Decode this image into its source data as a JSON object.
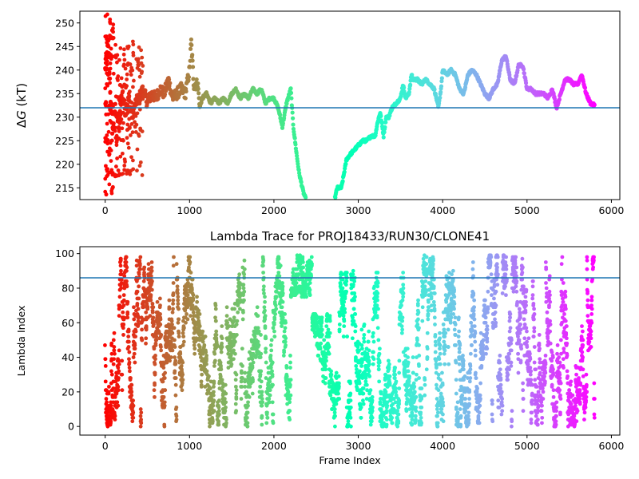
{
  "figure_title": "Lambda Trace for PROJ18433/RUN30/CLONE41",
  "colors": {
    "hline": "#1f77b4",
    "colormap": "rainbow"
  },
  "chart_data": [
    {
      "type": "scatter",
      "title": "",
      "xlabel": "",
      "ylabel_prefix": "Δ",
      "ylabel_var": "G",
      "ylabel_suffix": " (kT)",
      "xlim": [
        -300,
        6100
      ],
      "ylim": [
        212.5,
        252.5
      ],
      "xticks": [
        0,
        1000,
        2000,
        3000,
        4000,
        5000,
        6000
      ],
      "yticks": [
        215,
        220,
        225,
        230,
        235,
        240,
        245,
        250
      ],
      "hline": 232,
      "grid": false,
      "color_by": "frame index (rainbow, red at 0 to violet at ~5800)",
      "frame_range": [
        0,
        5800
      ],
      "trace": [
        [
          0,
          240
        ],
        [
          40,
          246
        ],
        [
          80,
          226
        ],
        [
          120,
          232
        ],
        [
          160,
          228
        ],
        [
          200,
          236
        ],
        [
          240,
          231
        ],
        [
          280,
          234
        ],
        [
          320,
          230
        ],
        [
          360,
          233
        ],
        [
          400,
          234
        ],
        [
          450,
          236
        ],
        [
          500,
          233
        ],
        [
          550,
          235
        ],
        [
          600,
          234
        ],
        [
          650,
          236
        ],
        [
          700,
          235
        ],
        [
          750,
          238
        ],
        [
          800,
          234
        ],
        [
          850,
          235
        ],
        [
          900,
          236
        ],
        [
          950,
          235
        ],
        [
          1000,
          240
        ],
        [
          1020,
          246
        ],
        [
          1050,
          237
        ],
        [
          1100,
          237
        ],
        [
          1120,
          232
        ],
        [
          1150,
          234
        ],
        [
          1200,
          235
        ],
        [
          1250,
          233
        ],
        [
          1300,
          234
        ],
        [
          1350,
          233
        ],
        [
          1400,
          234
        ],
        [
          1450,
          233
        ],
        [
          1500,
          235
        ],
        [
          1550,
          236
        ],
        [
          1600,
          234
        ],
        [
          1650,
          235
        ],
        [
          1700,
          234
        ],
        [
          1750,
          236
        ],
        [
          1800,
          235
        ],
        [
          1850,
          236
        ],
        [
          1900,
          233
        ],
        [
          1950,
          234
        ],
        [
          2000,
          234
        ],
        [
          2050,
          232
        ],
        [
          2100,
          228
        ],
        [
          2150,
          233
        ],
        [
          2200,
          236
        ],
        [
          2230,
          228
        ],
        [
          2270,
          222
        ],
        [
          2300,
          218
        ],
        [
          2350,
          214
        ],
        [
          2380,
          212.5
        ],
        [
          2720,
          212.5
        ],
        [
          2750,
          215
        ],
        [
          2800,
          215
        ],
        [
          2830,
          218
        ],
        [
          2860,
          221
        ],
        [
          2900,
          222
        ],
        [
          2950,
          223
        ],
        [
          3000,
          224
        ],
        [
          3050,
          225
        ],
        [
          3100,
          225
        ],
        [
          3150,
          226
        ],
        [
          3200,
          226
        ],
        [
          3230,
          229
        ],
        [
          3260,
          231
        ],
        [
          3300,
          226
        ],
        [
          3330,
          230
        ],
        [
          3360,
          230
        ],
        [
          3400,
          232
        ],
        [
          3450,
          233
        ],
        [
          3500,
          234
        ],
        [
          3530,
          237
        ],
        [
          3560,
          234
        ],
        [
          3600,
          235
        ],
        [
          3630,
          239
        ],
        [
          3650,
          238
        ],
        [
          3700,
          238
        ],
        [
          3750,
          237
        ],
        [
          3800,
          238
        ],
        [
          3850,
          237
        ],
        [
          3900,
          236
        ],
        [
          3950,
          232
        ],
        [
          3980,
          236
        ],
        [
          4000,
          240
        ],
        [
          4050,
          239
        ],
        [
          4100,
          240
        ],
        [
          4150,
          239
        ],
        [
          4200,
          236
        ],
        [
          4250,
          235
        ],
        [
          4300,
          239
        ],
        [
          4350,
          240
        ],
        [
          4400,
          239
        ],
        [
          4450,
          237
        ],
        [
          4500,
          235
        ],
        [
          4550,
          234
        ],
        [
          4600,
          236
        ],
        [
          4650,
          237
        ],
        [
          4700,
          242
        ],
        [
          4750,
          243
        ],
        [
          4800,
          238
        ],
        [
          4850,
          237
        ],
        [
          4900,
          241
        ],
        [
          4950,
          241
        ],
        [
          5000,
          236
        ],
        [
          5050,
          236
        ],
        [
          5100,
          235
        ],
        [
          5150,
          235
        ],
        [
          5200,
          235
        ],
        [
          5250,
          234
        ],
        [
          5300,
          236
        ],
        [
          5350,
          232
        ],
        [
          5400,
          235
        ],
        [
          5450,
          238
        ],
        [
          5500,
          238
        ],
        [
          5550,
          237
        ],
        [
          5600,
          237
        ],
        [
          5650,
          239
        ],
        [
          5700,
          235
        ],
        [
          5750,
          233
        ],
        [
          5800,
          232.5
        ]
      ],
      "scatter_noise_band": {
        "frames": [
          0,
          450
        ],
        "y_range": [
          213.5,
          252
        ],
        "note": "sparse scattered points early in the trajectory"
      }
    },
    {
      "type": "scatter",
      "title": "Lambda Trace for PROJ18433/RUN30/CLONE41",
      "xlabel": "Frame Index",
      "ylabel": "Lambda Index",
      "xlim": [
        -300,
        6100
      ],
      "ylim": [
        -5,
        104
      ],
      "xticks": [
        0,
        1000,
        2000,
        3000,
        4000,
        5000,
        6000
      ],
      "yticks": [
        0,
        20,
        40,
        60,
        80,
        100
      ],
      "hline": 86,
      "grid": false,
      "color_by": "frame index (rainbow, red at 0 to violet at ~5800)",
      "frame_range": [
        0,
        5800
      ],
      "lambda_range": [
        0,
        99
      ],
      "regions": [
        {
          "frames": [
            0,
            2200
          ],
          "lambda": [
            0,
            99
          ]
        },
        {
          "frames": [
            2200,
            2450
          ],
          "lambda": [
            75,
            99
          ]
        },
        {
          "frames": [
            2450,
            2750
          ],
          "lambda": [
            0,
            65
          ]
        },
        {
          "frames": [
            2750,
            3600
          ],
          "lambda": [
            0,
            90
          ]
        },
        {
          "frames": [
            3600,
            5800
          ],
          "lambda": [
            0,
            99
          ]
        }
      ]
    }
  ]
}
